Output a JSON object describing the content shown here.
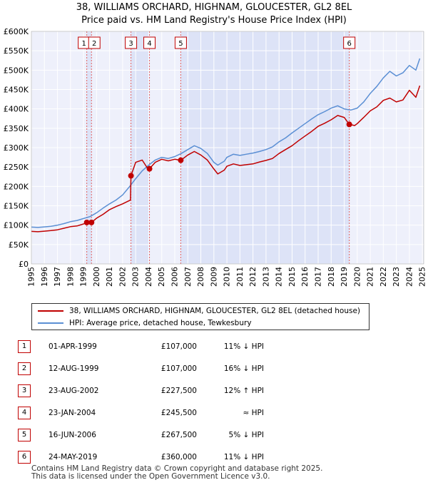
{
  "title_line1": "38, WILLIAMS ORCHARD, HIGHNAM, GLOUCESTER, GL2 8EL",
  "title_line2": "Price paid vs. HM Land Registry's House Price Index (HPI)",
  "chart_data": {
    "type": "line",
    "title": "38, WILLIAMS ORCHARD, HIGHNAM, GLOUCESTER, GL2 8EL",
    "subtitle": "Price paid vs. HM Land Registry's House Price Index (HPI)",
    "xlim": [
      1995,
      2025.1
    ],
    "ylim": [
      0,
      600000
    ],
    "y_ticks": [
      0,
      50000,
      100000,
      150000,
      200000,
      250000,
      300000,
      350000,
      400000,
      450000,
      500000,
      550000,
      600000
    ],
    "y_tick_labels": [
      "£0",
      "£50K",
      "£100K",
      "£150K",
      "£200K",
      "£250K",
      "£300K",
      "£350K",
      "£400K",
      "£450K",
      "£500K",
      "£550K",
      "£600K"
    ],
    "x_ticks": [
      1995,
      1996,
      1997,
      1998,
      1999,
      2000,
      2001,
      2002,
      2003,
      2004,
      2005,
      2006,
      2007,
      2008,
      2009,
      2010,
      2011,
      2012,
      2013,
      2014,
      2015,
      2016,
      2017,
      2018,
      2019,
      2020,
      2021,
      2022,
      2023,
      2024,
      2025
    ],
    "x_tick_labels": [
      "1995",
      "1996",
      "1997",
      "1998",
      "1999",
      "2000",
      "2001",
      "2002",
      "2003",
      "2004",
      "2005",
      "2006",
      "2007",
      "2008",
      "2009",
      "2010",
      "2011",
      "2012",
      "2013",
      "2014",
      "2015",
      "2016",
      "2017",
      "2018",
      "2019",
      "2020",
      "2021",
      "2022",
      "2023",
      "2024",
      "2025"
    ],
    "grid": true,
    "legend_position": "below",
    "shaded_periods": [
      [
        1999.25,
        1999.61
      ],
      [
        2002.64,
        2004.06
      ],
      [
        2006.46,
        2019.39
      ]
    ],
    "series": [
      {
        "name": "38, WILLIAMS ORCHARD, HIGHNAM, GLOUCESTER, GL2 8EL (detached house)",
        "color": "#c00000",
        "x": [
          1995,
          1995.5,
          1996,
          1996.5,
          1997,
          1997.5,
          1998,
          1998.5,
          1999,
          1999.25,
          1999.61,
          2000,
          2000.5,
          2001,
          2001.5,
          2002,
          2002.6,
          2002.64,
          2003,
          2003.5,
          2004,
          2004.06,
          2004.5,
          2005,
          2005.5,
          2006,
          2006.46,
          2007,
          2007.5,
          2008,
          2008.5,
          2009,
          2009.3,
          2009.8,
          2010,
          2010.5,
          2011,
          2011.5,
          2012,
          2012.5,
          2013,
          2013.5,
          2014,
          2014.5,
          2015,
          2015.5,
          2016,
          2016.5,
          2017,
          2017.5,
          2018,
          2018.5,
          2019,
          2019.39,
          2019.8,
          2020,
          2020.5,
          2021,
          2021.5,
          2022,
          2022.5,
          2023,
          2023.5,
          2024,
          2024.5,
          2024.8
        ],
        "values": [
          84000,
          83000,
          84500,
          86000,
          88000,
          92000,
          96000,
          98000,
          103000,
          107000,
          107000,
          118000,
          128000,
          140000,
          148000,
          155000,
          165000,
          227500,
          262000,
          268000,
          242000,
          245500,
          262000,
          270000,
          266000,
          270000,
          267500,
          281000,
          290000,
          281000,
          268000,
          245000,
          232000,
          242000,
          252000,
          258000,
          254000,
          256000,
          258000,
          263000,
          267000,
          272000,
          285000,
          295000,
          305000,
          318000,
          330000,
          342000,
          355000,
          363000,
          372000,
          383000,
          378000,
          360000,
          357000,
          362000,
          378000,
          395000,
          405000,
          422000,
          428000,
          418000,
          423000,
          448000,
          430000,
          460000
        ]
      },
      {
        "name": "HPI: Average price, detached house, Tewkesbury",
        "color": "#5b8fd4",
        "x": [
          1995,
          1995.5,
          1996,
          1996.5,
          1997,
          1997.5,
          1998,
          1998.5,
          1999,
          1999.5,
          2000,
          2000.5,
          2001,
          2001.5,
          2002,
          2002.5,
          2003,
          2003.5,
          2004,
          2004.5,
          2005,
          2005.5,
          2006,
          2006.5,
          2007,
          2007.5,
          2008,
          2008.5,
          2009,
          2009.3,
          2009.8,
          2010,
          2010.5,
          2011,
          2011.5,
          2012,
          2012.5,
          2013,
          2013.5,
          2014,
          2014.5,
          2015,
          2015.5,
          2016,
          2016.5,
          2017,
          2017.5,
          2018,
          2018.5,
          2019,
          2019.5,
          2020,
          2020.5,
          2021,
          2021.5,
          2022,
          2022.5,
          2023,
          2023.5,
          2024,
          2024.5,
          2024.8
        ],
        "values": [
          95000,
          94000,
          95500,
          97000,
          100000,
          104000,
          109000,
          112000,
          117000,
          122000,
          132000,
          144000,
          155000,
          165000,
          178000,
          198000,
          220000,
          240000,
          255000,
          268000,
          275000,
          272000,
          277000,
          285000,
          295000,
          305000,
          298000,
          285000,
          262000,
          255000,
          265000,
          275000,
          283000,
          280000,
          283000,
          286000,
          290000,
          295000,
          302000,
          315000,
          325000,
          338000,
          350000,
          362000,
          374000,
          385000,
          393000,
          402000,
          408000,
          400000,
          397000,
          402000,
          418000,
          440000,
          458000,
          480000,
          497000,
          485000,
          493000,
          512000,
          500000,
          530000
        ]
      }
    ],
    "sales": [
      {
        "label": "1",
        "x": 1999.25,
        "value": 107000
      },
      {
        "label": "2",
        "x": 1999.61,
        "value": 107000
      },
      {
        "label": "3",
        "x": 2002.64,
        "value": 227500
      },
      {
        "label": "4",
        "x": 2004.06,
        "value": 245500
      },
      {
        "label": "5",
        "x": 2006.46,
        "value": 267500
      },
      {
        "label": "6",
        "x": 2019.39,
        "value": 360000
      }
    ]
  },
  "legend": {
    "property": "38, WILLIAMS ORCHARD, HIGHNAM, GLOUCESTER, GL2 8EL (detached house)",
    "hpi": "HPI: Average price, detached house, Tewkesbury"
  },
  "transactions": [
    {
      "num": "1",
      "date": "01-APR-1999",
      "price": "£107,000",
      "hpi": "11% ↓ HPI"
    },
    {
      "num": "2",
      "date": "12-AUG-1999",
      "price": "£107,000",
      "hpi": "16% ↓ HPI"
    },
    {
      "num": "3",
      "date": "23-AUG-2002",
      "price": "£227,500",
      "hpi": "12% ↑ HPI"
    },
    {
      "num": "4",
      "date": "23-JAN-2004",
      "price": "£245,500",
      "hpi": "≈ HPI"
    },
    {
      "num": "5",
      "date": "16-JUN-2006",
      "price": "£267,500",
      "hpi": "5% ↓ HPI"
    },
    {
      "num": "6",
      "date": "24-MAY-2019",
      "price": "£360,000",
      "hpi": "11% ↓ HPI"
    }
  ],
  "footer_line1": "Contains HM Land Registry data © Crown copyright and database right 2025.",
  "footer_line2": "This data is licensed under the Open Government Licence v3.0."
}
